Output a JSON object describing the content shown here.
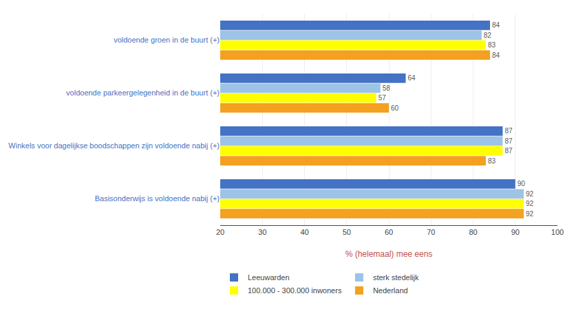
{
  "chart_data": {
    "type": "bar",
    "orientation": "horizontal",
    "categories": [
      "voldoende groen in de buurt (+)",
      "voldoende parkeergelegenheid in de buurt (+)",
      "Winkels voor dagelijkse boodschappen zijn voldoende nabij (+)",
      "Basisonderwijs is voldoende nabij (+)"
    ],
    "series": [
      {
        "name": "Leeuwarden",
        "color": "#4472C4",
        "values": [
          84,
          64,
          87,
          90
        ]
      },
      {
        "name": "sterk stedelijk",
        "color": "#9DC3E6",
        "values": [
          82,
          58,
          87,
          92
        ]
      },
      {
        "name": "100.000 - 300.000 inwoners",
        "color": "#FFFF00",
        "values": [
          83,
          57,
          87,
          92
        ]
      },
      {
        "name": "Nederland",
        "color": "#F4A020",
        "values": [
          84,
          60,
          83,
          92
        ]
      }
    ],
    "xlabel": "% (helemaal) mee eens",
    "xlim": [
      20,
      100
    ],
    "xticks": [
      20,
      30,
      40,
      50,
      60,
      70,
      80,
      90,
      100
    ],
    "grid": true,
    "data_labels": true,
    "legend": "bottom"
  }
}
